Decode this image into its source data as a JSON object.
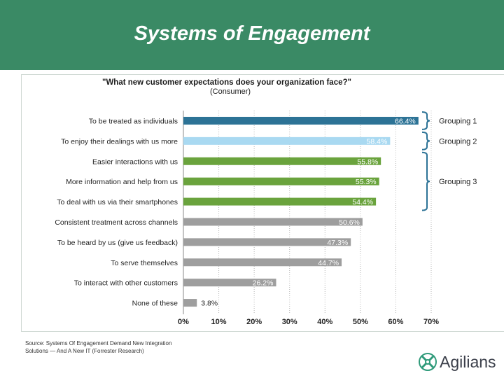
{
  "slide": {
    "title": "Systems of Engagement",
    "source": "Source: Systems Of Engagement Demand New Integration Solutions — And A New IT (Forrester Research)",
    "logo_text": "Agilians"
  },
  "colors": {
    "banner": "#3a8a65",
    "grouping1": "#2d7396",
    "grouping2": "#a9d9f1",
    "grouping3": "#6aa33d",
    "other": "#9e9e9e"
  },
  "chart_data": {
    "type": "bar",
    "orientation": "horizontal",
    "title": "\"What new customer expectations does your organization face?\"",
    "subtitle": "(Consumer)",
    "categories": [
      "To be treated as individuals",
      "To enjoy their dealings with us more",
      "Easier interactions with us",
      "More information and help from us",
      "To deal with us via their smartphones",
      "Consistent treatment across channels",
      "To be heard by us (give us feedback)",
      "To serve themselves",
      "To interact with other customers",
      "None of these"
    ],
    "values": [
      66.4,
      58.4,
      55.8,
      55.3,
      54.4,
      50.6,
      47.3,
      44.7,
      26.2,
      3.8
    ],
    "labels": [
      "66.4%",
      "58.4%",
      "55.8%",
      "55.3%",
      "54.4%",
      "50.6%",
      "47.3%",
      "44.7%",
      "26.2%",
      "3.8%"
    ],
    "bar_colors": [
      "#2d7396",
      "#a9d9f1",
      "#6aa33d",
      "#6aa33d",
      "#6aa33d",
      "#9e9e9e",
      "#9e9e9e",
      "#9e9e9e",
      "#9e9e9e",
      "#9e9e9e"
    ],
    "label_inside": [
      true,
      true,
      true,
      true,
      true,
      true,
      true,
      true,
      true,
      false
    ],
    "xlim": [
      0,
      70
    ],
    "xticks": [
      "0%",
      "10%",
      "20%",
      "30%",
      "40%",
      "50%",
      "60%",
      "70%"
    ],
    "grid": "vertical-dotted",
    "groupings": [
      {
        "label": "Grouping 1",
        "from": 0,
        "to": 0
      },
      {
        "label": "Grouping 2",
        "from": 1,
        "to": 1
      },
      {
        "label": "Grouping 3",
        "from": 2,
        "to": 4
      }
    ]
  }
}
